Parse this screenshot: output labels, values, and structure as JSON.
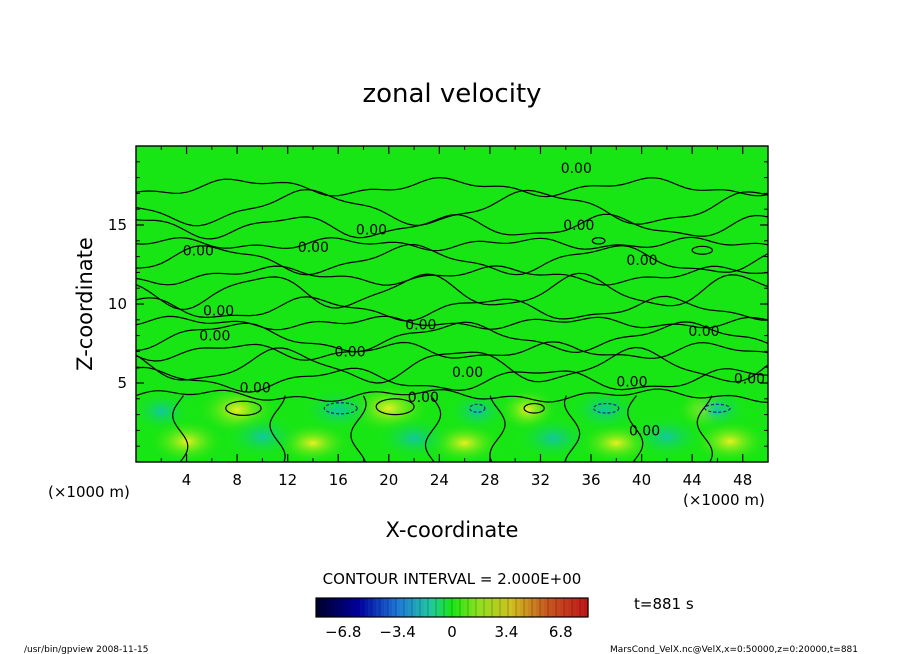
{
  "chart_data": {
    "type": "heatmap",
    "title": "zonal velocity",
    "xlabel": "X-coordinate",
    "ylabel": "Z-coordinate",
    "x_unit": "(×1000 m)",
    "xlim": [
      0,
      50
    ],
    "ylim": [
      0,
      20
    ],
    "x_ticks": [
      4,
      8,
      12,
      16,
      20,
      24,
      28,
      32,
      36,
      40,
      44,
      48
    ],
    "y_ticks": [
      5,
      10,
      15
    ],
    "contour_interval_label": "CONTOUR INTERVAL = 2.000E+00",
    "contour_labels": [
      "0.00"
    ],
    "colorbar": {
      "ticks": [
        "−6.8",
        "−3.4",
        "0",
        "3.4",
        "6.8"
      ],
      "range": [
        -8.5,
        8.5
      ]
    },
    "time_label": "t=881 s",
    "footer_left": "/usr/bin/gpview   2008-11-15",
    "footer_right": "MarsCond_VelX.nc@VelX,x=0:50000,z=0:20000,t=881"
  },
  "colors": {
    "field_background": "#18e614",
    "positive_patch": "#c8e628",
    "negative_patch": "#14d88c"
  }
}
